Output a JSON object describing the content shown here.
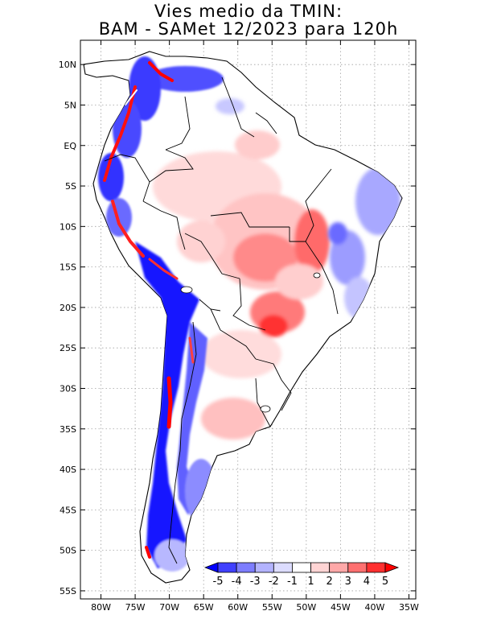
{
  "figure": {
    "title_line1": "Vies medio da TMIN:",
    "title_line2": "BAM - SAMet 12/2023  para 120h"
  },
  "map": {
    "region": "South America",
    "lon_range": [
      -83,
      -34
    ],
    "lat_range": [
      -56,
      13
    ],
    "lat_tick_labels": [
      "10N",
      "5N",
      "EQ",
      "5S",
      "10S",
      "15S",
      "20S",
      "25S",
      "30S",
      "35S",
      "40S",
      "45S",
      "50S",
      "55S"
    ],
    "lat_tick_values": [
      10,
      5,
      0,
      -5,
      -10,
      -15,
      -20,
      -25,
      -30,
      -35,
      -40,
      -45,
      -50,
      -55
    ],
    "lon_tick_labels": [
      "80W",
      "75W",
      "70W",
      "65W",
      "60W",
      "55W",
      "50W",
      "45W",
      "40W",
      "35W"
    ],
    "lon_tick_values": [
      -80,
      -75,
      -70,
      -65,
      -60,
      -55,
      -50,
      -45,
      -40,
      -35
    ]
  },
  "colorbar": {
    "labels": [
      "-5",
      "-4",
      "-3",
      "-2",
      "-1",
      "1",
      "2",
      "3",
      "4",
      "5"
    ],
    "colors": [
      "#0000ff",
      "#4040ff",
      "#7d7dff",
      "#b3b3ff",
      "#dcdcff",
      "#ffffff",
      "#ffd4d4",
      "#ffa8a8",
      "#ff7070",
      "#ff3030",
      "#ff0000"
    ]
  },
  "colors": {
    "strong_cold": "#0000ff",
    "cold": "#5050ff",
    "light_cold": "#b3b3ff",
    "neutral": "#ffffff",
    "light_warm": "#ffd0d0",
    "warm": "#ff8080",
    "strong_warm": "#ff0000"
  }
}
